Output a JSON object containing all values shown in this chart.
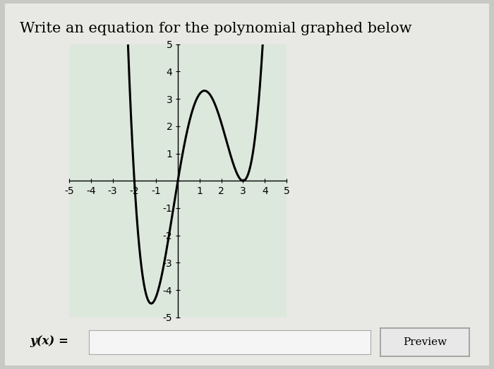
{
  "title": "Write an equation for the polynomial graphed below",
  "title_fontsize": 15,
  "xlim": [
    -5,
    5
  ],
  "ylim": [
    -5,
    5
  ],
  "xticks": [
    -5,
    -4,
    -3,
    -2,
    -1,
    0,
    1,
    2,
    3,
    4,
    5
  ],
  "yticks": [
    -5,
    -4,
    -3,
    -2,
    -1,
    0,
    1,
    2,
    3,
    4,
    5
  ],
  "curve_color": "#000000",
  "curve_linewidth": 2.2,
  "ylabel_text": "y(x) =",
  "preview_text": "Preview",
  "outer_bg": "#c8c8c4",
  "card_bg": "#e8e8e4",
  "graph_bg": "#dde8dd",
  "input_bg": "#f5f5f5",
  "btn_bg": "#e8e8e8"
}
